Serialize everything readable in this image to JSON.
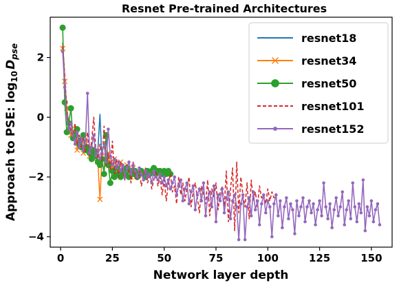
{
  "chart_data": {
    "type": "line",
    "title": "Resnet Pre-trained Architectures",
    "xlabel": "Network layer depth",
    "ylabel_prefix": "Approach to PSE:  log",
    "ylabel_sub": "10",
    "ylabel_var": "D",
    "ylabel_var_sub": "pse",
    "xlim": [
      -5,
      160
    ],
    "ylim": [
      -4.35,
      3.35
    ],
    "xticks": [
      0,
      25,
      50,
      75,
      100,
      125,
      150
    ],
    "yticks": [
      -4,
      -2,
      0,
      2
    ],
    "xtick_labels": [
      "0",
      "25",
      "50",
      "75",
      "100",
      "125",
      "150"
    ],
    "ytick_labels": [
      "−4",
      "−2",
      "0",
      "2"
    ],
    "grid": false,
    "legend_position": "top-right",
    "series": [
      {
        "name": "resnet18",
        "color": "#1f77b4",
        "linestyle": "solid",
        "marker": "none",
        "x": [
          1,
          2,
          3,
          4,
          5,
          6,
          7,
          8,
          9,
          10,
          11,
          12,
          13,
          14,
          15,
          16,
          17,
          18,
          19,
          20
        ],
        "y": [
          2.5,
          1.3,
          0.3,
          -0.2,
          -0.5,
          -0.6,
          -0.5,
          -0.8,
          -0.7,
          -0.9,
          -1.0,
          -1.1,
          -1.0,
          -1.2,
          -1.3,
          -1.2,
          -1.4,
          -1.1,
          0.1,
          -1.5
        ]
      },
      {
        "name": "resnet34",
        "color": "#ff7f0e",
        "linestyle": "solid",
        "marker": "x",
        "x": [
          1,
          2,
          3,
          4,
          5,
          6,
          7,
          8,
          9,
          10,
          11,
          12,
          13,
          14,
          15,
          16,
          17,
          18,
          19,
          20,
          21,
          22,
          23,
          24,
          25,
          26,
          27,
          28,
          29,
          30,
          31,
          32,
          33,
          34,
          35,
          36
        ],
        "y": [
          2.3,
          1.2,
          0.3,
          -0.3,
          -0.6,
          -0.5,
          -0.4,
          -1.1,
          -0.8,
          -0.7,
          -1.2,
          -0.9,
          -1.0,
          -1.3,
          -1.2,
          -1.4,
          -1.1,
          -1.5,
          -2.75,
          -1.3,
          -1.4,
          -1.6,
          -1.2,
          -1.5,
          -1.7,
          -1.4,
          -1.6,
          -1.8,
          -1.5,
          -1.7,
          -1.9,
          -1.6,
          -1.8,
          -2.0,
          -1.7,
          -1.9
        ]
      },
      {
        "name": "resnet50",
        "color": "#2ca02c",
        "linestyle": "solid",
        "marker": "o",
        "x": [
          1,
          2,
          3,
          4,
          5,
          6,
          7,
          8,
          9,
          10,
          11,
          12,
          13,
          14,
          15,
          16,
          17,
          18,
          19,
          20,
          21,
          22,
          23,
          24,
          25,
          26,
          27,
          28,
          29,
          30,
          31,
          32,
          33,
          34,
          35,
          36,
          37,
          38,
          39,
          40,
          41,
          42,
          43,
          44,
          45,
          46,
          47,
          48,
          49,
          50,
          51,
          52,
          53
        ],
        "y": [
          3.0,
          0.5,
          -0.5,
          -0.2,
          0.3,
          -0.7,
          -0.6,
          -0.4,
          -0.9,
          -1.0,
          -0.6,
          -1.1,
          -1.0,
          -1.2,
          -1.4,
          -1.1,
          -1.3,
          -1.5,
          -1.6,
          -1.4,
          -1.9,
          -0.6,
          -1.6,
          -2.2,
          -1.8,
          -2.0,
          -1.7,
          -1.9,
          -2.0,
          -1.8,
          -1.9,
          -1.7,
          -2.0,
          -1.8,
          -1.9,
          -1.8,
          -2.0,
          -1.9,
          -1.8,
          -1.9,
          -2.0,
          -1.8,
          -1.9,
          -1.8,
          -1.7,
          -1.9,
          -1.8,
          -1.8,
          -1.9,
          -1.8,
          -1.9,
          -1.8,
          -1.9
        ]
      },
      {
        "name": "resnet101",
        "color": "#d62728",
        "linestyle": "dashed",
        "marker": "none",
        "x": [
          1,
          2,
          3,
          4,
          5,
          6,
          7,
          8,
          9,
          10,
          11,
          12,
          13,
          14,
          15,
          16,
          17,
          18,
          19,
          20,
          21,
          22,
          23,
          24,
          25,
          26,
          27,
          28,
          29,
          30,
          31,
          32,
          33,
          34,
          35,
          36,
          37,
          38,
          39,
          40,
          41,
          42,
          43,
          44,
          45,
          46,
          47,
          48,
          49,
          50,
          51,
          52,
          53,
          54,
          55,
          56,
          57,
          58,
          59,
          60,
          61,
          62,
          63,
          64,
          65,
          66,
          67,
          68,
          69,
          70,
          71,
          72,
          73,
          74,
          75,
          76,
          77,
          78,
          79,
          80,
          81,
          82,
          83,
          84,
          85,
          86,
          87,
          88,
          89,
          90,
          91,
          92,
          93,
          94,
          95,
          96,
          97,
          98,
          99,
          100,
          101,
          102,
          103,
          104
        ],
        "y": [
          2.4,
          1.4,
          0.2,
          -0.3,
          -0.4,
          -0.7,
          -0.2,
          -0.9,
          -0.6,
          -1.0,
          -0.7,
          -1.2,
          -0.5,
          -1.3,
          -0.8,
          0.0,
          -1.1,
          -1.4,
          -0.9,
          -1.5,
          -0.3,
          -1.6,
          -1.2,
          -1.8,
          -0.8,
          -1.9,
          -1.4,
          -2.0,
          -1.5,
          -1.7,
          -2.1,
          -1.6,
          -1.8,
          -2.2,
          -1.5,
          -2.0,
          -2.1,
          -1.8,
          -2.3,
          -2.0,
          -1.7,
          -2.2,
          -1.9,
          -2.4,
          -2.1,
          -1.8,
          -2.3,
          -2.0,
          -2.6,
          -2.1,
          -2.8,
          -2.2,
          -1.9,
          -2.5,
          -2.3,
          -2.9,
          -2.0,
          -2.6,
          -2.2,
          -2.8,
          -2.4,
          -2.0,
          -3.0,
          -2.5,
          -2.2,
          -2.7,
          -3.2,
          -2.3,
          -2.6,
          -2.9,
          -2.1,
          -3.3,
          -2.4,
          -2.7,
          -2.2,
          -3.1,
          -2.5,
          -2.3,
          -3.0,
          -1.8,
          -3.5,
          -2.4,
          -1.7,
          -3.8,
          -1.5,
          -3.2,
          -2.0,
          -2.6,
          -3.0,
          -2.2,
          -3.4,
          -2.1,
          -2.8,
          -2.5,
          -3.0,
          -2.3,
          -2.7,
          -2.6,
          -2.9,
          -2.4,
          -2.8,
          -2.5,
          -2.7,
          -2.6
        ]
      },
      {
        "name": "resnet152",
        "color": "#9467bd",
        "linestyle": "solid",
        "marker": ".",
        "x": [
          1,
          2,
          3,
          4,
          5,
          6,
          7,
          8,
          9,
          10,
          11,
          12,
          13,
          14,
          15,
          16,
          17,
          18,
          19,
          20,
          21,
          22,
          23,
          24,
          25,
          26,
          27,
          28,
          29,
          30,
          31,
          32,
          33,
          34,
          35,
          36,
          37,
          38,
          39,
          40,
          41,
          42,
          43,
          44,
          45,
          46,
          47,
          48,
          49,
          50,
          51,
          52,
          53,
          54,
          55,
          56,
          57,
          58,
          59,
          60,
          61,
          62,
          63,
          64,
          65,
          66,
          67,
          68,
          69,
          70,
          71,
          72,
          73,
          74,
          75,
          76,
          77,
          78,
          79,
          80,
          81,
          82,
          83,
          84,
          85,
          86,
          87,
          88,
          89,
          90,
          91,
          92,
          93,
          94,
          95,
          96,
          97,
          98,
          99,
          100,
          101,
          102,
          103,
          104,
          105,
          106,
          107,
          108,
          109,
          110,
          111,
          112,
          113,
          114,
          115,
          116,
          117,
          118,
          119,
          120,
          121,
          122,
          123,
          124,
          125,
          126,
          127,
          128,
          129,
          130,
          131,
          132,
          133,
          134,
          135,
          136,
          137,
          138,
          139,
          140,
          141,
          142,
          143,
          144,
          145,
          146,
          147,
          148,
          149,
          150,
          151,
          152,
          153,
          154
        ],
        "y": [
          2.2,
          1.0,
          0.0,
          -0.4,
          -0.2,
          -0.6,
          -0.9,
          -0.5,
          -1.0,
          -0.7,
          -1.1,
          -0.8,
          0.8,
          -1.2,
          -1.0,
          -0.6,
          -1.3,
          -1.1,
          -1.4,
          -1.2,
          -0.9,
          -1.5,
          -0.4,
          -1.3,
          -1.6,
          -1.4,
          -1.7,
          -1.5,
          -1.8,
          -1.6,
          -2.0,
          -1.7,
          -1.5,
          -1.9,
          -1.6,
          -1.8,
          -2.0,
          -1.7,
          -1.9,
          -2.1,
          -1.8,
          -2.0,
          -1.9,
          -2.2,
          -1.8,
          -2.0,
          -2.1,
          -1.9,
          -2.2,
          -2.0,
          -2.3,
          -2.1,
          -2.4,
          -2.2,
          -2.0,
          -2.6,
          -2.3,
          -2.1,
          -2.8,
          -2.4,
          -2.2,
          -2.9,
          -2.5,
          -2.3,
          -3.1,
          -2.6,
          -2.4,
          -2.8,
          -2.2,
          -3.3,
          -2.7,
          -2.5,
          -3.0,
          -2.3,
          -3.5,
          -2.6,
          -2.8,
          -2.4,
          -3.2,
          -2.7,
          -2.5,
          -3.4,
          -2.8,
          -2.6,
          -3.0,
          -4.1,
          -2.9,
          -2.6,
          -4.1,
          -3.0,
          -2.7,
          -3.3,
          -2.5,
          -3.1,
          -2.8,
          -3.6,
          -2.9,
          -2.6,
          -3.2,
          -2.8,
          -3.0,
          -4.0,
          -2.9,
          -2.6,
          -3.3,
          -2.8,
          -3.7,
          -3.0,
          -2.7,
          -3.4,
          -2.9,
          -3.1,
          -3.9,
          -2.8,
          -3.3,
          -3.0,
          -2.7,
          -3.5,
          -3.0,
          -2.8,
          -3.2,
          -2.9,
          -3.6,
          -3.1,
          -2.8,
          -3.3,
          -2.2,
          -3.0,
          -3.4,
          -2.9,
          -3.7,
          -3.1,
          -2.7,
          -3.3,
          -3.0,
          -2.5,
          -3.6,
          -3.1,
          -2.8,
          -3.4,
          -2.2,
          -3.0,
          -3.5,
          -2.9,
          -3.2,
          -2.1,
          -3.8,
          -3.0,
          -3.3,
          -2.8,
          -3.5,
          -3.1,
          -2.9,
          -3.6
        ]
      }
    ]
  }
}
